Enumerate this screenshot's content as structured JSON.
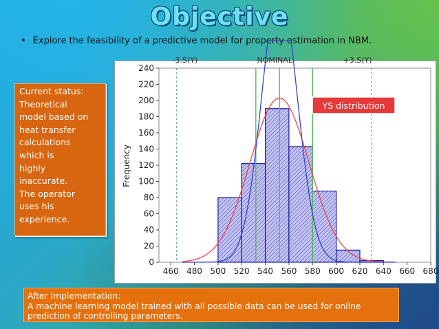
{
  "slide": {
    "title": "Objective",
    "bullet_marker": "•",
    "bullet_text": "Explore the feasibility of a predictive model for property estimation in NBM."
  },
  "status_box": {
    "lines": [
      "Current status:",
      "Theoretical",
      "model based on",
      "heat transfer",
      "calculations",
      "which is",
      "highly",
      "inaccurate.",
      "The operator",
      "uses his",
      "experience."
    ]
  },
  "after_box": {
    "heading": "After Implementation:",
    "line1": "A machine learning model trained with all possible data can be used for online",
    "line2": "prediction of controlling parameters."
  },
  "chart_data": {
    "type": "bar",
    "ylabel": "Frequency",
    "xlim": [
      450,
      680
    ],
    "ylim": [
      0,
      240
    ],
    "x_ticks": [
      460,
      480,
      500,
      520,
      540,
      560,
      580,
      600,
      620,
      640,
      660,
      680
    ],
    "y_ticks": [
      0,
      20,
      40,
      60,
      80,
      100,
      120,
      140,
      160,
      180,
      200,
      220,
      240
    ],
    "bins": [
      {
        "start": 500,
        "end": 520,
        "value": 80
      },
      {
        "start": 520,
        "end": 540,
        "value": 122
      },
      {
        "start": 540,
        "end": 560,
        "value": 190
      },
      {
        "start": 560,
        "end": 580,
        "value": 143
      },
      {
        "start": 580,
        "end": 600,
        "value": 88
      },
      {
        "start": 600,
        "end": 620,
        "value": 15
      },
      {
        "start": 620,
        "end": 640,
        "value": 2
      }
    ],
    "vlines_outer": [
      465,
      630
    ],
    "vlines_inner": [
      532,
      552,
      580
    ],
    "top_labels": [
      "-3.S(Y)",
      "NOMINAL",
      "+3.S(Y)"
    ],
    "annotation": "YS distribution",
    "bar_fill": "#b8b8f0",
    "bar_stroke": "#1a1aa0",
    "normal_curve_color": "#ee4444",
    "narrow_curve_color": "#3344cc",
    "inner_line_color": "#55bb55",
    "outer_line_color": "#449944",
    "annotation_bg": "#e43a3a"
  }
}
